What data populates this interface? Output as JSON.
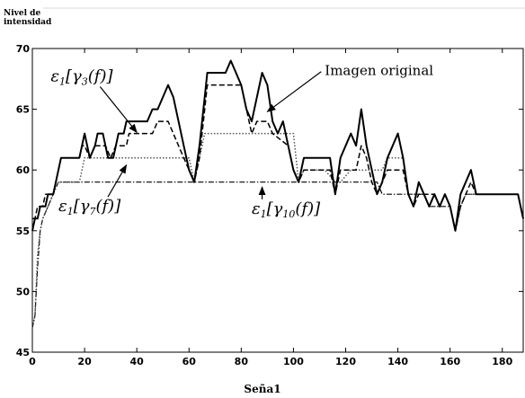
{
  "chart_data": {
    "type": "line",
    "title": "",
    "ylabel": "Nivel de intensidad",
    "xlabel": "Seña1",
    "xlim": [
      0,
      188
    ],
    "ylim": [
      45,
      70
    ],
    "xticks": [
      0,
      20,
      40,
      60,
      80,
      100,
      120,
      140,
      160,
      180
    ],
    "yticks": [
      45,
      50,
      55,
      60,
      65,
      70
    ],
    "grid": false,
    "series": [
      {
        "name": "Imagen original",
        "style": "solid",
        "points": [
          [
            0,
            55
          ],
          [
            1,
            56
          ],
          [
            2,
            56
          ],
          [
            3,
            57
          ],
          [
            5,
            57
          ],
          [
            6,
            58
          ],
          [
            8,
            58
          ],
          [
            9,
            59
          ],
          [
            10,
            60
          ],
          [
            11,
            61
          ],
          [
            18,
            61
          ],
          [
            19,
            62
          ],
          [
            20,
            63
          ],
          [
            21,
            62
          ],
          [
            22,
            61
          ],
          [
            24,
            62
          ],
          [
            25,
            63
          ],
          [
            27,
            63
          ],
          [
            28,
            62
          ],
          [
            29,
            61
          ],
          [
            31,
            61
          ],
          [
            32,
            62
          ],
          [
            33,
            63
          ],
          [
            35,
            63
          ],
          [
            36,
            64
          ],
          [
            44,
            64
          ],
          [
            46,
            65
          ],
          [
            48,
            65
          ],
          [
            50,
            66
          ],
          [
            52,
            67
          ],
          [
            54,
            66
          ],
          [
            56,
            64
          ],
          [
            58,
            62
          ],
          [
            60,
            60
          ],
          [
            62,
            59
          ],
          [
            64,
            62
          ],
          [
            66,
            66
          ],
          [
            67,
            68
          ],
          [
            74,
            68
          ],
          [
            76,
            69
          ],
          [
            78,
            68
          ],
          [
            80,
            67
          ],
          [
            82,
            65
          ],
          [
            84,
            64
          ],
          [
            86,
            66
          ],
          [
            88,
            68
          ],
          [
            90,
            67
          ],
          [
            92,
            64
          ],
          [
            94,
            63
          ],
          [
            96,
            64
          ],
          [
            98,
            62
          ],
          [
            100,
            60
          ],
          [
            102,
            59
          ],
          [
            104,
            61
          ],
          [
            114,
            61
          ],
          [
            116,
            58
          ],
          [
            118,
            61
          ],
          [
            120,
            62
          ],
          [
            122,
            63
          ],
          [
            124,
            62
          ],
          [
            126,
            65
          ],
          [
            128,
            62
          ],
          [
            130,
            60
          ],
          [
            132,
            58
          ],
          [
            134,
            59
          ],
          [
            136,
            61
          ],
          [
            138,
            62
          ],
          [
            140,
            63
          ],
          [
            142,
            61
          ],
          [
            144,
            58
          ],
          [
            146,
            57
          ],
          [
            148,
            59
          ],
          [
            150,
            58
          ],
          [
            152,
            57
          ],
          [
            154,
            58
          ],
          [
            156,
            57
          ],
          [
            158,
            58
          ],
          [
            160,
            57
          ],
          [
            162,
            55
          ],
          [
            164,
            58
          ],
          [
            166,
            59
          ],
          [
            168,
            60
          ],
          [
            170,
            58
          ],
          [
            186,
            58
          ],
          [
            188,
            56
          ]
        ]
      },
      {
        "name": "ε1[γ3(f)]",
        "style": "dashed",
        "points": [
          [
            0,
            56
          ],
          [
            1,
            56
          ],
          [
            2,
            57
          ],
          [
            4,
            57
          ],
          [
            5,
            58
          ],
          [
            8,
            58
          ],
          [
            9,
            59
          ],
          [
            10,
            60
          ],
          [
            11,
            61
          ],
          [
            18,
            61
          ],
          [
            19,
            62
          ],
          [
            20,
            62
          ],
          [
            22,
            61
          ],
          [
            24,
            62
          ],
          [
            28,
            62
          ],
          [
            30,
            61
          ],
          [
            32,
            62
          ],
          [
            36,
            62
          ],
          [
            37,
            63
          ],
          [
            46,
            63
          ],
          [
            48,
            64
          ],
          [
            52,
            64
          ],
          [
            54,
            63
          ],
          [
            56,
            62
          ],
          [
            58,
            61
          ],
          [
            60,
            60
          ],
          [
            62,
            59
          ],
          [
            64,
            61
          ],
          [
            66,
            65
          ],
          [
            67,
            67
          ],
          [
            80,
            67
          ],
          [
            82,
            65
          ],
          [
            84,
            63
          ],
          [
            86,
            64
          ],
          [
            90,
            64
          ],
          [
            92,
            63
          ],
          [
            98,
            62
          ],
          [
            100,
            60
          ],
          [
            102,
            59
          ],
          [
            104,
            60
          ],
          [
            114,
            60
          ],
          [
            116,
            58
          ],
          [
            118,
            60
          ],
          [
            124,
            60
          ],
          [
            126,
            62
          ],
          [
            128,
            61
          ],
          [
            130,
            59
          ],
          [
            132,
            58
          ],
          [
            134,
            59
          ],
          [
            136,
            60
          ],
          [
            142,
            60
          ],
          [
            144,
            58
          ],
          [
            146,
            57
          ],
          [
            148,
            58
          ],
          [
            154,
            58
          ],
          [
            156,
            57
          ],
          [
            158,
            58
          ],
          [
            160,
            57
          ],
          [
            162,
            55
          ],
          [
            164,
            57
          ],
          [
            166,
            58
          ],
          [
            168,
            59
          ],
          [
            170,
            58
          ],
          [
            186,
            58
          ],
          [
            188,
            56
          ]
        ]
      },
      {
        "name": "ε1[γ7(f)]",
        "style": "dotted",
        "points": [
          [
            0,
            47
          ],
          [
            1,
            48
          ],
          [
            2,
            53
          ],
          [
            3,
            55
          ],
          [
            4,
            56
          ],
          [
            6,
            57
          ],
          [
            8,
            58
          ],
          [
            10,
            59
          ],
          [
            18,
            59
          ],
          [
            20,
            61
          ],
          [
            60,
            61
          ],
          [
            62,
            59
          ],
          [
            64,
            61
          ],
          [
            66,
            63
          ],
          [
            100,
            63
          ],
          [
            102,
            59
          ],
          [
            104,
            60
          ],
          [
            112,
            60
          ],
          [
            116,
            59
          ],
          [
            118,
            59
          ],
          [
            122,
            60
          ],
          [
            134,
            60
          ],
          [
            136,
            61
          ],
          [
            142,
            61
          ],
          [
            144,
            58
          ],
          [
            150,
            58
          ],
          [
            152,
            57
          ],
          [
            156,
            57
          ],
          [
            158,
            58
          ],
          [
            160,
            57
          ],
          [
            162,
            55
          ],
          [
            164,
            57
          ],
          [
            166,
            58
          ],
          [
            186,
            58
          ],
          [
            188,
            56
          ]
        ]
      },
      {
        "name": "ε1[γ10(f)]",
        "style": "dashdot",
        "points": [
          [
            0,
            47
          ],
          [
            1,
            48
          ],
          [
            2,
            52
          ],
          [
            3,
            55
          ],
          [
            4,
            56
          ],
          [
            6,
            57
          ],
          [
            8,
            58
          ],
          [
            10,
            59
          ],
          [
            132,
            59
          ],
          [
            134,
            58
          ],
          [
            150,
            58
          ],
          [
            152,
            57
          ],
          [
            160,
            57
          ],
          [
            162,
            55
          ],
          [
            164,
            57
          ],
          [
            166,
            58
          ],
          [
            186,
            58
          ],
          [
            188,
            56
          ]
        ]
      }
    ],
    "annotations": [
      {
        "label": "Imagen original",
        "text_x": 112,
        "text_y": 67.8,
        "arrow_to": [
          90,
          64.8
        ]
      },
      {
        "label_main": "ε",
        "label_sub": "1",
        "label_rest": "[γ",
        "label_sub2": "3",
        "label_end": "(f)]",
        "text_x": 7,
        "text_y": 67.3,
        "arrow_to": [
          40,
          63.1
        ]
      },
      {
        "label_main": "ε",
        "label_sub": "1",
        "label_rest": "[γ",
        "label_sub2": "7",
        "label_end": "(f)]",
        "text_x": 10,
        "text_y": 56.6,
        "arrow_to": [
          36,
          60.4
        ]
      },
      {
        "label_main": "ε",
        "label_sub": "1",
        "label_rest": "[γ",
        "label_sub2": "10",
        "label_end": "(f)]",
        "text_x": 84,
        "text_y": 56.4,
        "arrow_to": [
          88,
          58.6
        ]
      }
    ]
  }
}
